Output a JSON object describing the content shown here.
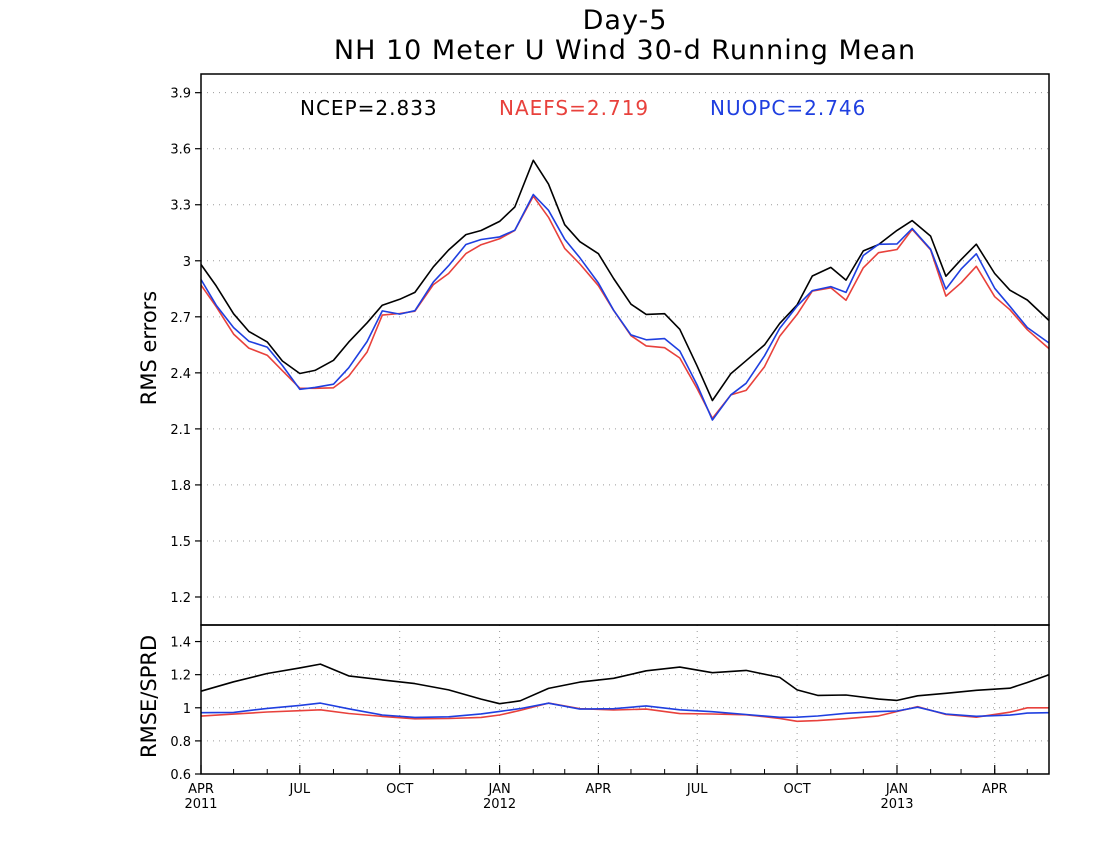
{
  "chart_data": [
    {
      "type": "line",
      "title": "Day-5",
      "subtitle": "NH 10 Meter U Wind 30-d Running Mean",
      "xlabel": "",
      "ylabel": "RMS errors",
      "xlim": [
        "2011-04-01",
        "2013-05-21"
      ],
      "ylim": [
        1.05,
        4.0
      ],
      "yticks": [
        "1.2",
        "1.5",
        "1.8",
        "2.1",
        "2.4",
        "2.7",
        "3",
        "3.3",
        "3.6",
        "3.9"
      ],
      "grid": true,
      "legend": [
        {
          "text": "NCEP=2.833",
          "color": "#000000"
        },
        {
          "text": "NAEFS=2.719",
          "color": "#e8413c"
        },
        {
          "text": "NUOPC=2.746",
          "color": "#1f3fe0"
        }
      ],
      "x": [
        "2011-04-01",
        "2011-04-15",
        "2011-05-01",
        "2011-05-15",
        "2011-06-01",
        "2011-06-15",
        "2011-07-01",
        "2011-07-15",
        "2011-08-01",
        "2011-08-15",
        "2011-09-01",
        "2011-09-15",
        "2011-10-01",
        "2011-10-15",
        "2011-11-01",
        "2011-11-15",
        "2011-12-01",
        "2011-12-15",
        "2012-01-01",
        "2012-01-15",
        "2012-02-01",
        "2012-02-15",
        "2012-03-01",
        "2012-03-15",
        "2012-04-01",
        "2012-04-15",
        "2012-05-01",
        "2012-05-15",
        "2012-06-01",
        "2012-06-15",
        "2012-07-01",
        "2012-07-15",
        "2012-08-01",
        "2012-08-15",
        "2012-09-01",
        "2012-09-15",
        "2012-10-01",
        "2012-10-15",
        "2012-11-01",
        "2012-11-15",
        "2012-12-01",
        "2012-12-15",
        "2013-01-01",
        "2013-01-15",
        "2013-02-01",
        "2013-02-15",
        "2013-03-01",
        "2013-03-15",
        "2013-04-01",
        "2013-04-15",
        "2013-05-01",
        "2013-05-21"
      ],
      "series": [
        {
          "name": "NCEP",
          "color": "#000000",
          "values": [
            2.98,
            2.85,
            2.7,
            2.62,
            2.58,
            2.48,
            2.4,
            2.4,
            2.45,
            2.56,
            2.68,
            2.78,
            2.8,
            2.82,
            2.95,
            3.05,
            3.15,
            3.18,
            3.22,
            3.28,
            3.52,
            3.4,
            3.2,
            3.12,
            3.05,
            2.9,
            2.75,
            2.7,
            2.72,
            2.65,
            2.45,
            2.25,
            2.38,
            2.45,
            2.55,
            2.68,
            2.78,
            2.92,
            2.95,
            2.88,
            3.05,
            3.1,
            3.18,
            3.22,
            3.12,
            2.9,
            3.0,
            3.1,
            2.95,
            2.85,
            2.78,
            2.68
          ]
        },
        {
          "name": "NAEFS",
          "color": "#e8413c",
          "values": [
            2.87,
            2.75,
            2.62,
            2.55,
            2.5,
            2.4,
            2.3,
            2.31,
            2.33,
            2.4,
            2.52,
            2.7,
            2.7,
            2.72,
            2.88,
            2.95,
            3.05,
            3.08,
            3.1,
            3.15,
            3.35,
            3.25,
            3.08,
            2.98,
            2.85,
            2.72,
            2.6,
            2.56,
            2.55,
            2.48,
            2.3,
            2.14,
            2.28,
            2.32,
            2.45,
            2.6,
            2.7,
            2.82,
            2.85,
            2.8,
            2.98,
            3.05,
            3.05,
            3.15,
            3.05,
            2.82,
            2.9,
            2.98,
            2.8,
            2.72,
            2.62,
            2.53
          ]
        },
        {
          "name": "NUOPC",
          "color": "#1f3fe0",
          "values": [
            2.9,
            2.78,
            2.65,
            2.56,
            2.52,
            2.43,
            2.32,
            2.34,
            2.35,
            2.42,
            2.55,
            2.72,
            2.72,
            2.75,
            2.9,
            2.97,
            3.07,
            3.1,
            3.13,
            3.18,
            3.37,
            3.27,
            3.1,
            3.0,
            2.88,
            2.75,
            2.62,
            2.58,
            2.57,
            2.5,
            2.33,
            2.16,
            2.3,
            2.35,
            2.48,
            2.62,
            2.75,
            2.85,
            2.88,
            2.84,
            3.02,
            3.07,
            3.08,
            3.18,
            3.08,
            2.86,
            2.95,
            3.02,
            2.84,
            2.76,
            2.66,
            2.56
          ]
        }
      ]
    },
    {
      "type": "line",
      "title": "",
      "xlabel": "",
      "ylabel": "RMSE/SPRD",
      "xlim": [
        "2011-04-01",
        "2013-05-21"
      ],
      "ylim": [
        0.6,
        1.5
      ],
      "yticks": [
        "0.6",
        "0.8",
        "1",
        "1.2",
        "1.4"
      ],
      "grid": true,
      "xticks": [
        {
          "date": "2011-04-01",
          "label": "APR",
          "year": "2011"
        },
        {
          "date": "2011-07-01",
          "label": "JUL",
          "year": ""
        },
        {
          "date": "2011-10-01",
          "label": "OCT",
          "year": ""
        },
        {
          "date": "2012-01-01",
          "label": "JAN",
          "year": "2012"
        },
        {
          "date": "2012-04-01",
          "label": "APR",
          "year": ""
        },
        {
          "date": "2012-07-01",
          "label": "JUL",
          "year": ""
        },
        {
          "date": "2012-10-01",
          "label": "OCT",
          "year": ""
        },
        {
          "date": "2013-01-01",
          "label": "JAN",
          "year": "2013"
        },
        {
          "date": "2013-04-01",
          "label": "APR",
          "year": ""
        }
      ],
      "x": [
        "2011-04-01",
        "2011-05-01",
        "2011-06-01",
        "2011-07-01",
        "2011-07-20",
        "2011-08-15",
        "2011-09-15",
        "2011-10-15",
        "2011-11-15",
        "2011-12-15",
        "2012-01-01",
        "2012-01-20",
        "2012-02-15",
        "2012-03-15",
        "2012-04-15",
        "2012-05-15",
        "2012-06-15",
        "2012-07-15",
        "2012-08-15",
        "2012-09-15",
        "2012-10-01",
        "2012-10-20",
        "2012-11-15",
        "2012-12-15",
        "2013-01-01",
        "2013-01-20",
        "2013-02-15",
        "2013-03-15",
        "2013-04-15",
        "2013-05-01",
        "2013-05-21"
      ],
      "series": [
        {
          "name": "NCEP",
          "color": "#000000",
          "values": [
            1.1,
            1.15,
            1.2,
            1.24,
            1.27,
            1.2,
            1.17,
            1.14,
            1.1,
            1.05,
            1.03,
            1.05,
            1.12,
            1.15,
            1.17,
            1.22,
            1.25,
            1.22,
            1.23,
            1.18,
            1.1,
            1.07,
            1.08,
            1.06,
            1.05,
            1.07,
            1.08,
            1.1,
            1.12,
            1.16,
            1.2
          ]
        },
        {
          "name": "NAEFS",
          "color": "#e8413c",
          "values": [
            0.95,
            0.96,
            0.98,
            0.99,
            0.99,
            0.96,
            0.94,
            0.93,
            0.94,
            0.95,
            0.96,
            0.98,
            1.02,
            0.99,
            0.99,
            1.0,
            0.97,
            0.96,
            0.95,
            0.93,
            0.92,
            0.93,
            0.94,
            0.95,
            0.97,
            1.0,
            0.96,
            0.95,
            0.98,
            1.0,
            1.0
          ]
        },
        {
          "name": "NUOPC",
          "color": "#1f3fe0",
          "values": [
            0.97,
            0.98,
            1.0,
            1.01,
            1.02,
            0.99,
            0.96,
            0.95,
            0.95,
            0.96,
            0.97,
            0.99,
            1.03,
            1.0,
            1.0,
            1.01,
            0.98,
            0.97,
            0.96,
            0.95,
            0.95,
            0.95,
            0.96,
            0.97,
            0.98,
            1.01,
            0.97,
            0.95,
            0.95,
            0.96,
            0.97
          ]
        }
      ]
    }
  ]
}
